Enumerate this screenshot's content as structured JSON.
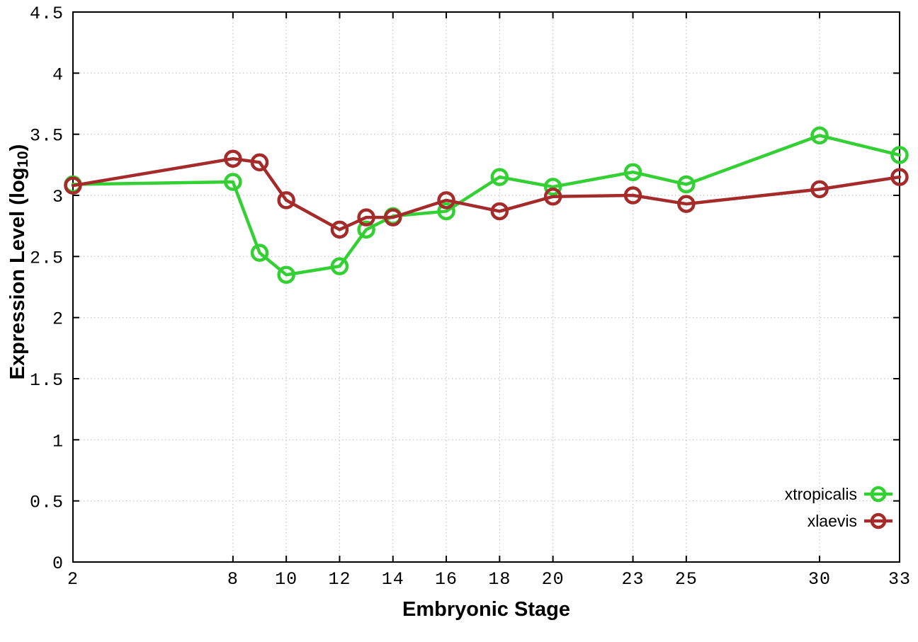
{
  "chart_data": {
    "type": "line",
    "title": "",
    "xlabel": "Embryonic Stage",
    "ylabel": "Expression Level (log10)",
    "ylabel_parts": {
      "prefix": "Expression Level (log",
      "sub": "10",
      "suffix": ")"
    },
    "x": [
      2,
      8,
      9,
      10,
      12,
      13,
      14,
      16,
      18,
      20,
      23,
      25,
      30,
      33
    ],
    "series": [
      {
        "name": "xtropicalis",
        "color": "#32d032",
        "values": [
          3.09,
          3.11,
          2.53,
          2.35,
          2.42,
          2.72,
          2.83,
          2.87,
          3.15,
          3.07,
          3.19,
          3.09,
          3.49,
          3.33
        ]
      },
      {
        "name": "xlaevis",
        "color": "#a52a2a",
        "values": [
          3.08,
          3.3,
          3.27,
          2.96,
          2.72,
          2.82,
          2.82,
          2.96,
          2.87,
          2.99,
          3.0,
          2.93,
          3.05,
          3.15
        ]
      }
    ],
    "xlim": [
      2,
      33
    ],
    "ylim": [
      0,
      4.5
    ],
    "xticks": [
      2,
      8,
      10,
      12,
      14,
      16,
      18,
      20,
      23,
      25,
      30,
      33
    ],
    "ytick_step": 0.5,
    "grid": true,
    "legend_position": "inside-bottom-right",
    "axis_color": "#000000",
    "grid_color": "#c4c4c4",
    "background_color": "#ffffff"
  }
}
